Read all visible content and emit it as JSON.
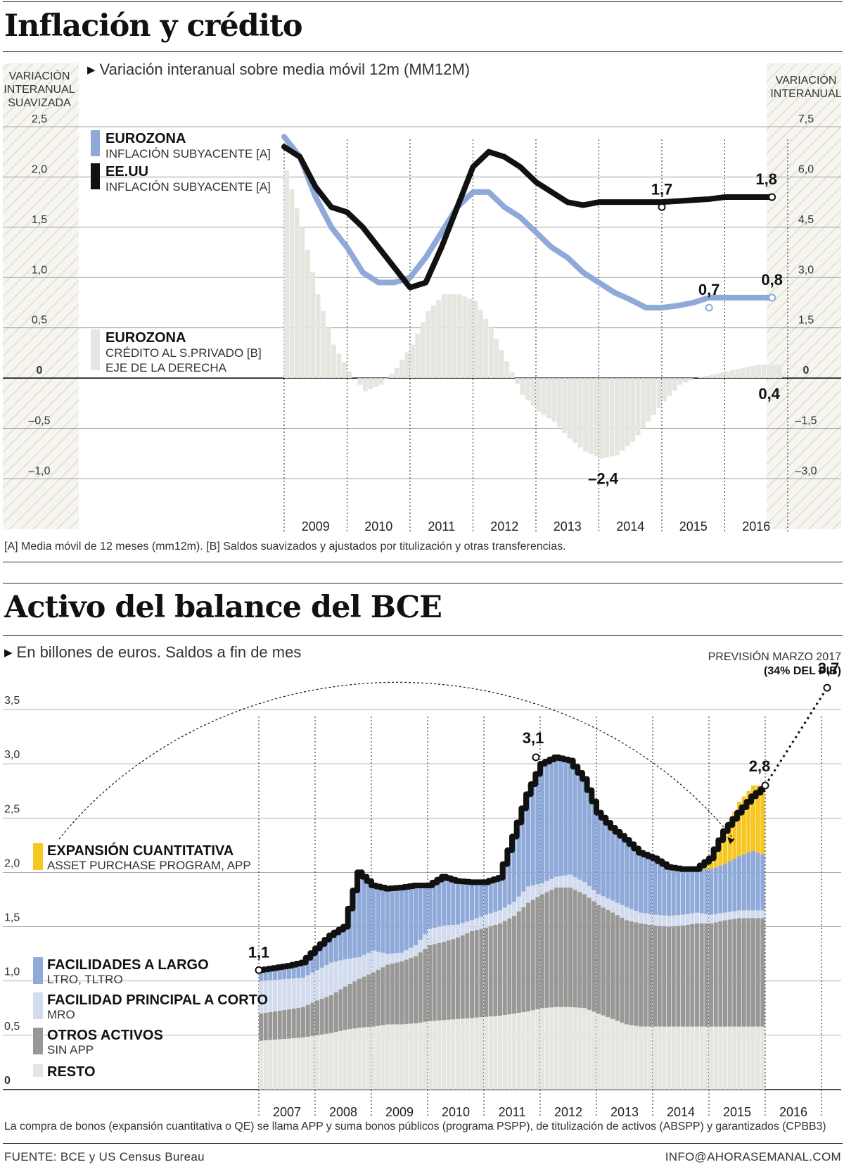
{
  "chart_data": [
    {
      "type": "line",
      "title": "Inflación y crédito",
      "subtitle": "Variación interanual sobre media móvil 12m (MM12M)",
      "ylabel_left": "VARIACIÓN INTERANUAL SUAVIZADA",
      "ylabel_right": "VARIACIÓN INTERANUAL",
      "yticks_left": [
        "2,5",
        "2,0",
        "1,5",
        "1,0",
        "0,5",
        "0",
        "–0,5",
        "–1,0"
      ],
      "yticks_right": [
        "7,5",
        "6,0",
        "4,5",
        "3,0",
        "1,5",
        "0",
        "–1,5",
        "–3,0"
      ],
      "ylim_left": [
        -1.0,
        2.5
      ],
      "ylim_right": [
        -3.0,
        7.5
      ],
      "x_categories": [
        "2009",
        "2010",
        "2011",
        "2012",
        "2013",
        "2014",
        "2015",
        "2016"
      ],
      "series": [
        {
          "name": "EUROZONA",
          "sub": "INFLACIÓN SUBYACENTE [A]",
          "color": "#8fa9d8",
          "x": [
            2008.0,
            2008.25,
            2008.5,
            2008.75,
            2009.0,
            2009.25,
            2009.5,
            2009.75,
            2010.0,
            2010.25,
            2010.5,
            2010.75,
            2011.0,
            2011.25,
            2011.5,
            2011.75,
            2012.0,
            2012.25,
            2012.5,
            2012.75,
            2013.0,
            2013.25,
            2013.5,
            2013.75,
            2014.0,
            2014.25,
            2014.5,
            2014.75,
            2015.0,
            2015.25,
            2015.5,
            2015.75
          ],
          "values": [
            2.4,
            2.2,
            1.8,
            1.5,
            1.3,
            1.05,
            0.95,
            0.95,
            1.0,
            1.2,
            1.45,
            1.7,
            1.85,
            1.85,
            1.7,
            1.6,
            1.45,
            1.3,
            1.2,
            1.05,
            0.95,
            0.85,
            0.78,
            0.7,
            0.7,
            0.72,
            0.75,
            0.8,
            0.8,
            0.8,
            0.8,
            0.8
          ]
        },
        {
          "name": "EE.UU",
          "sub": "INFLACIÓN SUBYACENTE [A]",
          "color": "#111111",
          "x": [
            2008.0,
            2008.25,
            2008.5,
            2008.75,
            2009.0,
            2009.25,
            2009.5,
            2009.75,
            2010.0,
            2010.25,
            2010.5,
            2010.75,
            2011.0,
            2011.25,
            2011.5,
            2011.75,
            2012.0,
            2012.25,
            2012.5,
            2012.75,
            2013.0,
            2013.25,
            2013.5,
            2013.75,
            2014.0,
            2014.25,
            2014.5,
            2014.75,
            2015.0,
            2015.25,
            2015.5,
            2015.75
          ],
          "values": [
            2.3,
            2.2,
            1.9,
            1.7,
            1.65,
            1.5,
            1.3,
            1.1,
            0.9,
            0.95,
            1.3,
            1.7,
            2.1,
            2.25,
            2.2,
            2.1,
            1.95,
            1.85,
            1.75,
            1.72,
            1.75,
            1.75,
            1.75,
            1.75,
            1.75,
            1.76,
            1.77,
            1.78,
            1.8,
            1.8,
            1.8,
            1.8
          ]
        },
        {
          "name": "EUROZONA",
          "sub": "CRÉDITO AL S.PRIVADO [B]",
          "sub2": "EJE DE LA DERECHA",
          "type": "bar",
          "axis": "right",
          "color": "#e6e5df",
          "x": [
            2008.0,
            2008.25,
            2008.5,
            2008.75,
            2009.0,
            2009.25,
            2009.5,
            2009.75,
            2010.0,
            2010.25,
            2010.5,
            2010.75,
            2011.0,
            2011.25,
            2011.5,
            2011.75,
            2012.0,
            2012.25,
            2012.5,
            2012.75,
            2013.0,
            2013.25,
            2013.5,
            2013.75,
            2014.0,
            2014.25,
            2014.5,
            2014.75,
            2015.0,
            2015.25,
            2015.5,
            2015.75
          ],
          "values": [
            6.2,
            4.5,
            2.5,
            1.0,
            0.2,
            -0.4,
            -0.2,
            0.3,
            1.0,
            2.0,
            2.5,
            2.5,
            2.3,
            1.5,
            0.5,
            -0.5,
            -1.0,
            -1.3,
            -1.8,
            -2.2,
            -2.4,
            -2.3,
            -1.9,
            -1.3,
            -0.7,
            -0.2,
            0.0,
            0.1,
            0.2,
            0.3,
            0.4,
            0.4
          ]
        }
      ],
      "annotations": [
        "1,7",
        "1,8",
        "0,7",
        "0,8",
        "0,4",
        "–2,4"
      ]
    },
    {
      "type": "area",
      "title": "Activo del balance del BCE",
      "subtitle": "En billones de euros. Saldos a fin de mes",
      "yticks": [
        "3,5",
        "3,0",
        "2,5",
        "2,0",
        "1,5",
        "1,0",
        "0,5",
        "0"
      ],
      "ylim": [
        0,
        3.5
      ],
      "x_categories": [
        "2007",
        "2008",
        "2009",
        "2010",
        "2011",
        "2012",
        "2013",
        "2014",
        "2015",
        "2016"
      ],
      "forecast_label": "PREVISIÓN MARZO 2017",
      "forecast_note": "(34% DEL PIB)",
      "forecast_value": "3,7",
      "series_legend": [
        {
          "name": "EXPANSIÓN CUANTITATIVA",
          "sub": "ASSET PURCHASE PROGRAM, APP",
          "color": "#f6c621"
        },
        {
          "name": "FACILIDADES A LARGO",
          "sub": "LTRO, TLTRO",
          "color": "#8fa9d8"
        },
        {
          "name": "FACILIDAD PRINCIPAL A CORTO",
          "sub": "MRO",
          "color": "#d3dcef"
        },
        {
          "name": "OTROS ACTIVOS",
          "sub": "SIN APP",
          "color": "#9a9896"
        },
        {
          "name": "RESTO",
          "sub": "",
          "color": "#e6e5df"
        }
      ],
      "x": [
        2007.0,
        2007.25,
        2007.5,
        2007.75,
        2008.0,
        2008.25,
        2008.5,
        2008.75,
        2009.0,
        2009.25,
        2009.5,
        2009.75,
        2010.0,
        2010.25,
        2010.5,
        2010.75,
        2011.0,
        2011.25,
        2011.5,
        2011.75,
        2012.0,
        2012.25,
        2012.5,
        2012.75,
        2013.0,
        2013.25,
        2013.5,
        2013.75,
        2014.0,
        2014.25,
        2014.5,
        2014.75,
        2015.0,
        2015.25,
        2015.5,
        2015.75,
        2016.0
      ],
      "stacks": {
        "resto": [
          0.45,
          0.46,
          0.47,
          0.48,
          0.5,
          0.52,
          0.55,
          0.57,
          0.58,
          0.6,
          0.6,
          0.61,
          0.63,
          0.64,
          0.65,
          0.66,
          0.67,
          0.68,
          0.7,
          0.72,
          0.75,
          0.76,
          0.76,
          0.75,
          0.7,
          0.65,
          0.6,
          0.58,
          0.58,
          0.58,
          0.58,
          0.58,
          0.58,
          0.58,
          0.58,
          0.58,
          0.58
        ],
        "otros": [
          0.25,
          0.26,
          0.27,
          0.28,
          0.32,
          0.35,
          0.4,
          0.45,
          0.5,
          0.55,
          0.58,
          0.62,
          0.7,
          0.72,
          0.75,
          0.8,
          0.82,
          0.85,
          0.9,
          1.0,
          1.05,
          1.1,
          1.1,
          1.05,
          1.0,
          0.98,
          0.96,
          0.95,
          0.93,
          0.92,
          0.93,
          0.95,
          0.95,
          0.98,
          1.0,
          1.0,
          1.0
        ],
        "mro": [
          0.3,
          0.29,
          0.28,
          0.27,
          0.28,
          0.3,
          0.25,
          0.2,
          0.2,
          0.1,
          0.08,
          0.1,
          0.15,
          0.15,
          0.12,
          0.1,
          0.12,
          0.12,
          0.13,
          0.15,
          0.1,
          0.1,
          0.12,
          0.11,
          0.1,
          0.11,
          0.12,
          0.1,
          0.1,
          0.1,
          0.1,
          0.1,
          0.08,
          0.07,
          0.07,
          0.07,
          0.07
        ],
        "ltro": [
          0.1,
          0.11,
          0.12,
          0.14,
          0.2,
          0.25,
          0.3,
          0.78,
          0.6,
          0.6,
          0.6,
          0.55,
          0.4,
          0.45,
          0.4,
          0.35,
          0.3,
          0.3,
          0.6,
          0.85,
          1.1,
          1.1,
          1.05,
          0.95,
          0.75,
          0.67,
          0.62,
          0.55,
          0.52,
          0.45,
          0.42,
          0.4,
          0.42,
          0.45,
          0.5,
          0.55,
          0.5
        ],
        "app": [
          0,
          0,
          0,
          0,
          0,
          0,
          0,
          0,
          0,
          0,
          0,
          0,
          0,
          0,
          0,
          0,
          0,
          0,
          0,
          0,
          0,
          0,
          0,
          0,
          0,
          0,
          0,
          0,
          0,
          0,
          0,
          0.0,
          0.1,
          0.3,
          0.5,
          0.6,
          0.65
        ]
      },
      "total": [
        1.1,
        1.12,
        1.14,
        1.17,
        1.3,
        1.42,
        1.5,
        2.0,
        1.88,
        1.85,
        1.86,
        1.88,
        1.88,
        1.96,
        1.92,
        1.91,
        1.91,
        1.95,
        2.33,
        2.72,
        3.0,
        3.06,
        3.03,
        2.86,
        2.55,
        2.41,
        2.3,
        2.18,
        2.13,
        2.05,
        2.03,
        2.03,
        2.13,
        2.38,
        2.55,
        2.7,
        2.8
      ],
      "annotations": [
        "1,1",
        "3,1",
        "2,8",
        "3,7"
      ]
    }
  ],
  "top": {
    "title": "Inflación y crédito",
    "subtitle": "Variación interanual sobre media móvil 12m (MM12M)",
    "left_axis_label": [
      "VARIACIÓN",
      "INTERANUAL",
      "SUAVIZADA"
    ],
    "right_axis_label": [
      "VARIACIÓN",
      "INTERANUAL"
    ],
    "note": "[A] Media móvil de 12 meses (mm12m). [B] Saldos suavizados y ajustados por titulización y otras transferencias."
  },
  "bottom": {
    "title": "Activo del balance del BCE",
    "subtitle": "En billones de euros. Saldos a fin de mes",
    "note": "La compra de bonos (expansión cuantitativa o QE) se llama APP y suma bonos públicos (programa PSPP), de titulización de activos (ABSPP) y garantizados (CPBB3)"
  },
  "footer": {
    "source": "FUENTE: BCE y US Census Bureau",
    "email": "INFO@AHORASEMANAL.COM"
  }
}
